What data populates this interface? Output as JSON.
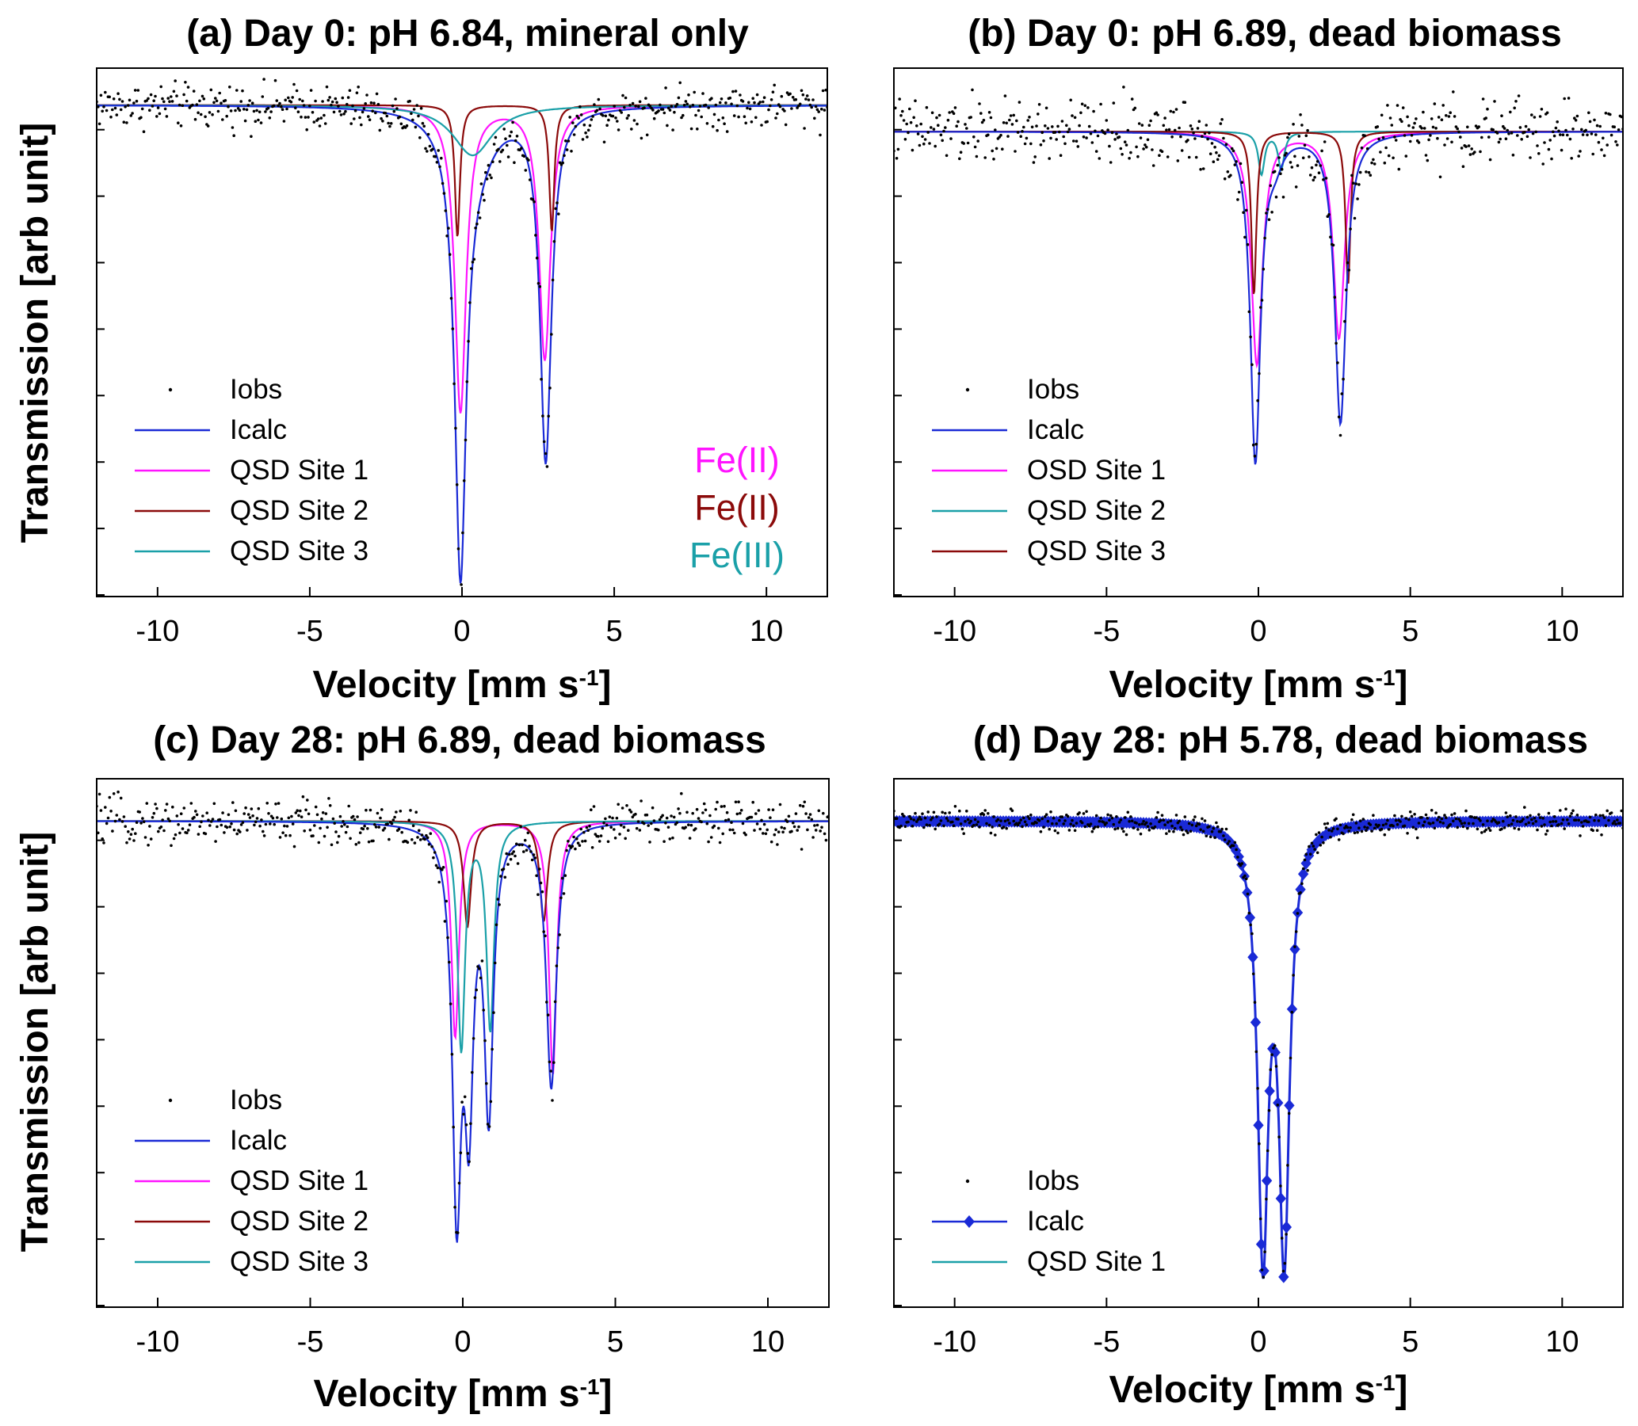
{
  "chart_data": [
    {
      "type": "line",
      "title": "(a) Day 0: pH 6.84, mineral only",
      "xlabel": "Velocity [mm s",
      "xlabel_sup": "-1",
      "xlabel_end": "]",
      "ylabel": "Transmission [arb unit]",
      "xlim": [
        -12,
        12
      ],
      "xticks": [
        "-10",
        "-5",
        "0",
        "5",
        "10"
      ],
      "ylim": [
        0,
        1
      ],
      "baseline": 0.93,
      "noise": 0.03,
      "legend_position": "bottom-left",
      "series": [
        {
          "name": "Iobs",
          "style": "dots",
          "color": "#000000"
        },
        {
          "name": "Icalc",
          "style": "line",
          "color": "#1a2ad6",
          "peaks": [
            {
              "pos": -0.05,
              "depth": 0.825,
              "width": 0.45
            },
            {
              "pos": 2.75,
              "depth": 0.665,
              "width": 0.45
            },
            {
              "pos": 0.35,
              "depth": 0.095,
              "width": 1.6
            }
          ]
        },
        {
          "name": "QSD Site 1",
          "style": "line",
          "color": "#ff14ff",
          "peaks": [
            {
              "pos": -0.05,
              "depth": 0.58,
              "width": 0.45
            },
            {
              "pos": 2.72,
              "depth": 0.48,
              "width": 0.45
            }
          ]
        },
        {
          "name": "QSD Site 2",
          "style": "line",
          "color": "#8b0a0a",
          "peaks": [
            {
              "pos": -0.15,
              "depth": 0.25,
              "width": 0.2
            },
            {
              "pos": 2.95,
              "depth": 0.24,
              "width": 0.2
            }
          ]
        },
        {
          "name": "QSD Site 3",
          "style": "line",
          "color": "#1aa0a8",
          "peaks": [
            {
              "pos": 0.35,
              "depth": 0.095,
              "width": 1.6
            }
          ]
        }
      ],
      "annotations": [
        {
          "text": "Fe(II)",
          "color": "#ff14ff"
        },
        {
          "text": "Fe(II)",
          "color": "#8b0a0a"
        },
        {
          "text": "Fe(III)",
          "color": "#1aa0a8"
        }
      ]
    },
    {
      "type": "line",
      "title": "(b) Day 0: pH 6.89, dead biomass",
      "xlabel": "Velocity [mm s",
      "xlabel_sup": "-1",
      "xlabel_end": "]",
      "ylabel": "",
      "xlim": [
        -12,
        12
      ],
      "xticks": [
        "-10",
        "-5",
        "0",
        "5",
        "10"
      ],
      "ylim": [
        0,
        1
      ],
      "baseline": 0.88,
      "noise": 0.045,
      "legend_position": "bottom-left",
      "series": [
        {
          "name": "Iobs",
          "style": "dots",
          "color": "#000000"
        },
        {
          "name": "Icalc",
          "style": "line",
          "color": "#1a2ad6",
          "peaks": [
            {
              "pos": -0.1,
              "depth": 0.62,
              "width": 0.4
            },
            {
              "pos": 2.7,
              "depth": 0.55,
              "width": 0.45
            },
            {
              "pos": 0.55,
              "depth": 0.04,
              "width": 0.6
            }
          ]
        },
        {
          "name": "OSD Site 1",
          "style": "line",
          "color": "#ff14ff",
          "peaks": [
            {
              "pos": -0.05,
              "depth": 0.44,
              "width": 0.45
            },
            {
              "pos": 2.65,
              "depth": 0.39,
              "width": 0.45
            }
          ]
        },
        {
          "name": "QSD Site 2",
          "style": "line",
          "color": "#1aa0a8",
          "peaks": [
            {
              "pos": 0.1,
              "depth": 0.08,
              "width": 0.25
            },
            {
              "pos": 0.75,
              "depth": 0.07,
              "width": 0.25
            }
          ]
        },
        {
          "name": "QSD Site 3",
          "style": "line",
          "color": "#8b0a0a",
          "peaks": [
            {
              "pos": -0.15,
              "depth": 0.31,
              "width": 0.2
            },
            {
              "pos": 2.95,
              "depth": 0.29,
              "width": 0.2
            }
          ]
        }
      ]
    },
    {
      "type": "line",
      "title": "(c) Day 28: pH 6.89, dead biomass",
      "xlabel": "Velocity [mm s",
      "xlabel_sup": "-1",
      "xlabel_end": "]",
      "ylabel": "Transmission [arb unit]",
      "xlim": [
        -12,
        12
      ],
      "xticks": [
        "-10",
        "-5",
        "0",
        "5",
        "10"
      ],
      "ylim": [
        0,
        1
      ],
      "baseline": 0.92,
      "noise": 0.03,
      "legend_position": "bottom-left",
      "series": [
        {
          "name": "Iobs",
          "style": "dots",
          "color": "#000000"
        },
        {
          "name": "Icalc",
          "style": "line",
          "color": "#1a2ad6",
          "peaks": [
            {
              "pos": -0.2,
              "depth": 0.7,
              "width": 0.35
            },
            {
              "pos": 0.2,
              "depth": 0.5,
              "width": 0.35
            },
            {
              "pos": 0.85,
              "depth": 0.53,
              "width": 0.35
            },
            {
              "pos": 2.9,
              "depth": 0.5,
              "width": 0.4
            }
          ]
        },
        {
          "name": "QSD Site 1",
          "style": "line",
          "color": "#ff14ff",
          "peaks": [
            {
              "pos": -0.25,
              "depth": 0.41,
              "width": 0.3
            },
            {
              "pos": 2.95,
              "depth": 0.48,
              "width": 0.3
            }
          ]
        },
        {
          "name": "QSD Site 2",
          "style": "line",
          "color": "#8b0a0a",
          "peaks": [
            {
              "pos": 0.15,
              "depth": 0.2,
              "width": 0.3
            },
            {
              "pos": 2.65,
              "depth": 0.19,
              "width": 0.3
            }
          ]
        },
        {
          "name": "QSD Site 3",
          "style": "line",
          "color": "#1aa0a8",
          "peaks": [
            {
              "pos": -0.05,
              "depth": 0.43,
              "width": 0.3
            },
            {
              "pos": 0.9,
              "depth": 0.39,
              "width": 0.3
            }
          ]
        }
      ]
    },
    {
      "type": "line",
      "title": "(d) Day 28: pH 5.78, dead biomass",
      "xlabel": "Velocity [mm s",
      "xlabel_sup": "-1",
      "xlabel_end": "]",
      "ylabel": "",
      "xlim": [
        -12,
        12
      ],
      "xticks": [
        "-10",
        "-5",
        "0",
        "5",
        "10"
      ],
      "ylim": [
        0,
        1
      ],
      "baseline": 0.92,
      "noise": 0.015,
      "legend_position": "bottom-left",
      "series": [
        {
          "name": "Iobs",
          "style": "dots",
          "color": "#000000"
        },
        {
          "name": "Icalc",
          "style": "diamonds",
          "color": "#1a2ad6",
          "peaks": [
            {
              "pos": 0.15,
              "depth": 0.8,
              "width": 0.42
            },
            {
              "pos": 0.85,
              "depth": 0.8,
              "width": 0.42
            }
          ]
        },
        {
          "name": "QSD Site 1",
          "style": "line",
          "color": "#1aa0a8",
          "peaks": [
            {
              "pos": 0.15,
              "depth": 0.8,
              "width": 0.42
            },
            {
              "pos": 0.85,
              "depth": 0.8,
              "width": 0.42
            }
          ]
        }
      ]
    }
  ]
}
